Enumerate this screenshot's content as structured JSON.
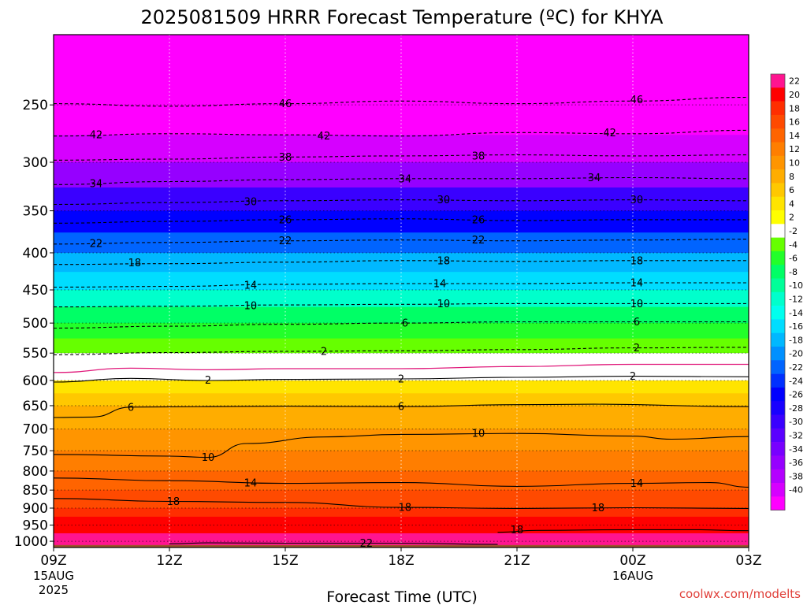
{
  "chart_data": {
    "type": "heatmap",
    "title": "2025081509 HRRR Forecast Temperature (ºC) for KHYA",
    "xlabel": "Forecast Time (UTC)",
    "credit": "coolwx.com/modelts",
    "x": {
      "range_hours": [
        0,
        18
      ],
      "ticks": [
        {
          "hour": 0,
          "label": "09Z",
          "sub1": "15AUG",
          "sub2": "2025"
        },
        {
          "hour": 3,
          "label": "12Z",
          "sub1": "",
          "sub2": ""
        },
        {
          "hour": 6,
          "label": "15Z",
          "sub1": "",
          "sub2": ""
        },
        {
          "hour": 9,
          "label": "18Z",
          "sub1": "",
          "sub2": ""
        },
        {
          "hour": 12,
          "label": "21Z",
          "sub1": "",
          "sub2": ""
        },
        {
          "hour": 15,
          "label": "00Z",
          "sub1": "16AUG",
          "sub2": ""
        },
        {
          "hour": 18,
          "label": "03Z",
          "sub1": "",
          "sub2": ""
        }
      ]
    },
    "y": {
      "scale": "log-pressure",
      "range_hpa": [
        1020,
        200
      ],
      "ticks": [
        {
          "p": 250,
          "label": "250"
        },
        {
          "p": 300,
          "label": "300"
        },
        {
          "p": 350,
          "label": "350"
        },
        {
          "p": 400,
          "label": "400"
        },
        {
          "p": 450,
          "label": "450"
        },
        {
          "p": 500,
          "label": "500"
        },
        {
          "p": 550,
          "label": "550"
        },
        {
          "p": 600,
          "label": "600"
        },
        {
          "p": 650,
          "label": "650"
        },
        {
          "p": 700,
          "label": "700"
        },
        {
          "p": 750,
          "label": "750"
        },
        {
          "p": 800,
          "label": "800"
        },
        {
          "p": 850,
          "label": "850"
        },
        {
          "p": 900,
          "label": "900"
        },
        {
          "p": 950,
          "label": "950"
        },
        {
          "p": 1000,
          "label": "1000"
        }
      ]
    },
    "profile": [
      {
        "p": 1012,
        "t": 22.6
      },
      {
        "p": 1000,
        "t": 21.4
      },
      {
        "p": 975,
        "t": 20.0
      },
      {
        "p": 950,
        "t": 18.8
      },
      {
        "p": 925,
        "t": 17.6
      },
      {
        "p": 900,
        "t": 16.4
      },
      {
        "p": 875,
        "t": 15.2
      },
      {
        "p": 850,
        "t": 14.0
      },
      {
        "p": 825,
        "t": 13.0
      },
      {
        "p": 800,
        "t": 12.0
      },
      {
        "p": 775,
        "t": 11.0
      },
      {
        "p": 750,
        "t": 10.3
      },
      {
        "p": 725,
        "t": 9.6
      },
      {
        "p": 700,
        "t": 8.6
      },
      {
        "p": 675,
        "t": 7.2
      },
      {
        "p": 650,
        "t": 5.8
      },
      {
        "p": 625,
        "t": 4.0
      },
      {
        "p": 600,
        "t": 2.2
      },
      {
        "p": 575,
        "t": 0.8
      },
      {
        "p": 550,
        "t": -2.5
      },
      {
        "p": 525,
        "t": -4.5
      },
      {
        "p": 500,
        "t": -6.5
      },
      {
        "p": 475,
        "t": -9.5
      },
      {
        "p": 450,
        "t": -13.0
      },
      {
        "p": 425,
        "t": -16.0
      },
      {
        "p": 400,
        "t": -19.5
      },
      {
        "p": 375,
        "t": -23.5
      },
      {
        "p": 350,
        "t": -27.5
      },
      {
        "p": 325,
        "t": -32.0
      },
      {
        "p": 300,
        "t": -36.5
      },
      {
        "p": 275,
        "t": -41.0
      },
      {
        "p": 250,
        "t": -45.0
      },
      {
        "p": 225,
        "t": -49.0
      },
      {
        "p": 200,
        "t": -53.0
      }
    ],
    "ground_hpa": 1012,
    "ground_color": "#a0522d",
    "contours": [
      {
        "level": 46,
        "negative": true,
        "points": [
          [
            0,
            249
          ],
          [
            3,
            251
          ],
          [
            6,
            249
          ],
          [
            9,
            247
          ],
          [
            12,
            249
          ],
          [
            15,
            247
          ],
          [
            18,
            244
          ]
        ]
      },
      {
        "level": 42,
        "negative": true,
        "points": [
          [
            0,
            276
          ],
          [
            3,
            274
          ],
          [
            6,
            275
          ],
          [
            9,
            276
          ],
          [
            12,
            273
          ],
          [
            15,
            274
          ],
          [
            18,
            271
          ]
        ]
      },
      {
        "level": 38,
        "negative": true,
        "points": [
          [
            0,
            298
          ],
          [
            3,
            297
          ],
          [
            6,
            295
          ],
          [
            9,
            294
          ],
          [
            12,
            293
          ],
          [
            15,
            294
          ],
          [
            18,
            293
          ]
        ]
      },
      {
        "level": 34,
        "negative": true,
        "points": [
          [
            0,
            322
          ],
          [
            3,
            319
          ],
          [
            6,
            317
          ],
          [
            9,
            316
          ],
          [
            12,
            316
          ],
          [
            15,
            315
          ],
          [
            18,
            316
          ]
        ]
      },
      {
        "level": 30,
        "negative": true,
        "points": [
          [
            0,
            343
          ],
          [
            3,
            341
          ],
          [
            6,
            339
          ],
          [
            9,
            338
          ],
          [
            12,
            339
          ],
          [
            15,
            338
          ],
          [
            18,
            339
          ]
        ]
      },
      {
        "level": 26,
        "negative": true,
        "points": [
          [
            0,
            364
          ],
          [
            3,
            362
          ],
          [
            6,
            360
          ],
          [
            9,
            359
          ],
          [
            12,
            361
          ],
          [
            15,
            360
          ],
          [
            18,
            360
          ]
        ]
      },
      {
        "level": 22,
        "negative": true,
        "points": [
          [
            0,
            389
          ],
          [
            3,
            387
          ],
          [
            6,
            385
          ],
          [
            9,
            384
          ],
          [
            12,
            385
          ],
          [
            15,
            384
          ],
          [
            18,
            383
          ]
        ]
      },
      {
        "level": 18,
        "negative": true,
        "points": [
          [
            0,
            415
          ],
          [
            3,
            414
          ],
          [
            6,
            412
          ],
          [
            9,
            410
          ],
          [
            12,
            411
          ],
          [
            15,
            410
          ],
          [
            18,
            410
          ]
        ]
      },
      {
        "level": 14,
        "negative": true,
        "points": [
          [
            0,
            446
          ],
          [
            3,
            445
          ],
          [
            6,
            442
          ],
          [
            9,
            441
          ],
          [
            12,
            441
          ],
          [
            15,
            440
          ],
          [
            18,
            440
          ]
        ]
      },
      {
        "level": 10,
        "negative": true,
        "points": [
          [
            0,
            475
          ],
          [
            3,
            474
          ],
          [
            6,
            472
          ],
          [
            9,
            471
          ],
          [
            12,
            470
          ],
          [
            15,
            470
          ],
          [
            18,
            470
          ]
        ]
      },
      {
        "level": 6,
        "negative": true,
        "points": [
          [
            0,
            508
          ],
          [
            3,
            505
          ],
          [
            6,
            502
          ],
          [
            9,
            500
          ],
          [
            12,
            498
          ],
          [
            15,
            498
          ],
          [
            18,
            498
          ]
        ]
      },
      {
        "level": 2,
        "negative": true,
        "points": [
          [
            0,
            553
          ],
          [
            3,
            549
          ],
          [
            6,
            547
          ],
          [
            9,
            546
          ],
          [
            12,
            544
          ],
          [
            15,
            541
          ],
          [
            18,
            540
          ]
        ]
      },
      {
        "level": 2,
        "negative": false,
        "points": [
          [
            0,
            603
          ],
          [
            2,
            596
          ],
          [
            4,
            600
          ],
          [
            6,
            598
          ],
          [
            9,
            597
          ],
          [
            12,
            594
          ],
          [
            15,
            592
          ],
          [
            18,
            593
          ]
        ]
      },
      {
        "level": 6,
        "negative": false,
        "points": [
          [
            0,
            675
          ],
          [
            1,
            674
          ],
          [
            2,
            653
          ],
          [
            6,
            651
          ],
          [
            9,
            652
          ],
          [
            12,
            648
          ],
          [
            14,
            647
          ],
          [
            18,
            652
          ]
        ]
      },
      {
        "level": 10,
        "negative": false,
        "points": [
          [
            0,
            759
          ],
          [
            3,
            763
          ],
          [
            4,
            766
          ],
          [
            5,
            733
          ],
          [
            7,
            718
          ],
          [
            9,
            712
          ],
          [
            12,
            710
          ],
          [
            15,
            716
          ],
          [
            16,
            723
          ],
          [
            18,
            717
          ]
        ]
      },
      {
        "level": 14,
        "negative": false,
        "points": [
          [
            0,
            818
          ],
          [
            3,
            825
          ],
          [
            6,
            832
          ],
          [
            9,
            830
          ],
          [
            12,
            840
          ],
          [
            15,
            832
          ],
          [
            17,
            830
          ],
          [
            18,
            842
          ]
        ]
      },
      {
        "level": 18,
        "negative": false,
        "points": [
          [
            0,
            873
          ],
          [
            3,
            881
          ],
          [
            6,
            884
          ],
          [
            9,
            898
          ],
          [
            12,
            901
          ],
          [
            15,
            899
          ],
          [
            18,
            901
          ]
        ]
      },
      {
        "level": 18,
        "negative": false,
        "points": [
          [
            11.5,
            972
          ],
          [
            12.5,
            966
          ],
          [
            15,
            964
          ],
          [
            16.5,
            964
          ],
          [
            18,
            967
          ]
        ]
      },
      {
        "level": 22,
        "negative": false,
        "points": [
          [
            3,
            1008
          ],
          [
            4,
            1005
          ],
          [
            6,
            1006
          ],
          [
            9,
            1006
          ],
          [
            11.5,
            1010
          ]
        ]
      }
    ],
    "magenta_line": {
      "level": 0,
      "points": [
        [
          0,
          585
        ],
        [
          2,
          577
        ],
        [
          4,
          580
        ],
        [
          6,
          578
        ],
        [
          9,
          578
        ],
        [
          12,
          574
        ],
        [
          15,
          570
        ],
        [
          18,
          570
        ]
      ]
    },
    "contour_labels": [
      {
        "text": "46",
        "h": 6.0,
        "p": 249
      },
      {
        "text": "46",
        "h": 15.1,
        "p": 246
      },
      {
        "text": "42",
        "h": 1.1,
        "p": 275
      },
      {
        "text": "42",
        "h": 7.0,
        "p": 276
      },
      {
        "text": "42",
        "h": 14.4,
        "p": 273
      },
      {
        "text": "38",
        "h": 6.0,
        "p": 295
      },
      {
        "text": "38",
        "h": 11.0,
        "p": 294
      },
      {
        "text": "34",
        "h": 1.1,
        "p": 321
      },
      {
        "text": "34",
        "h": 9.1,
        "p": 316
      },
      {
        "text": "34",
        "h": 14.0,
        "p": 315
      },
      {
        "text": "30",
        "h": 5.1,
        "p": 340
      },
      {
        "text": "30",
        "h": 10.1,
        "p": 338
      },
      {
        "text": "30",
        "h": 15.1,
        "p": 338
      },
      {
        "text": "26",
        "h": 6.0,
        "p": 360
      },
      {
        "text": "26",
        "h": 11.0,
        "p": 360
      },
      {
        "text": "22",
        "h": 1.1,
        "p": 388
      },
      {
        "text": "22",
        "h": 6.0,
        "p": 385
      },
      {
        "text": "22",
        "h": 11.0,
        "p": 384
      },
      {
        "text": "18",
        "h": 2.1,
        "p": 413
      },
      {
        "text": "18",
        "h": 10.1,
        "p": 410
      },
      {
        "text": "18",
        "h": 15.1,
        "p": 410
      },
      {
        "text": "14",
        "h": 5.1,
        "p": 443
      },
      {
        "text": "14",
        "h": 10.0,
        "p": 441
      },
      {
        "text": "14",
        "h": 15.1,
        "p": 440
      },
      {
        "text": "10",
        "h": 5.1,
        "p": 473
      },
      {
        "text": "10",
        "h": 10.1,
        "p": 470
      },
      {
        "text": "10",
        "h": 15.1,
        "p": 470
      },
      {
        "text": "6",
        "h": 9.1,
        "p": 500
      },
      {
        "text": "6",
        "h": 15.1,
        "p": 498
      },
      {
        "text": "2",
        "h": 7.0,
        "p": 547
      },
      {
        "text": "2",
        "h": 15.1,
        "p": 541
      },
      {
        "text": "2",
        "h": 4.0,
        "p": 599
      },
      {
        "text": "2",
        "h": 9.0,
        "p": 597
      },
      {
        "text": "2",
        "h": 15.0,
        "p": 592
      },
      {
        "text": "6",
        "h": 2.0,
        "p": 653
      },
      {
        "text": "6",
        "h": 9.0,
        "p": 652
      },
      {
        "text": "10",
        "h": 4.0,
        "p": 766
      },
      {
        "text": "10",
        "h": 11.0,
        "p": 710
      },
      {
        "text": "14",
        "h": 5.1,
        "p": 831
      },
      {
        "text": "14",
        "h": 15.1,
        "p": 832
      },
      {
        "text": "18",
        "h": 3.1,
        "p": 881
      },
      {
        "text": "18",
        "h": 9.1,
        "p": 898
      },
      {
        "text": "18",
        "h": 14.1,
        "p": 899
      },
      {
        "text": "18",
        "h": 12.0,
        "p": 964
      },
      {
        "text": "22",
        "h": 8.1,
        "p": 1006
      }
    ],
    "colorbar": {
      "bins": [
        {
          "label": "22",
          "color": "#ff1490"
        },
        {
          "label": "20",
          "color": "#ff0000"
        },
        {
          "label": "18",
          "color": "#ff2e00"
        },
        {
          "label": "16",
          "color": "#ff4a00"
        },
        {
          "label": "14",
          "color": "#ff6400"
        },
        {
          "label": "12",
          "color": "#ff7e00"
        },
        {
          "label": "10",
          "color": "#ff9500"
        },
        {
          "label": "8",
          "color": "#ffad00"
        },
        {
          "label": "6",
          "color": "#ffc800"
        },
        {
          "label": "4",
          "color": "#ffe400"
        },
        {
          "label": "2",
          "color": "#ffff00"
        },
        {
          "label": "-2",
          "color": "#ffffff"
        },
        {
          "label": "-4",
          "color": "#66ff00"
        },
        {
          "label": "-6",
          "color": "#22ff2a"
        },
        {
          "label": "-8",
          "color": "#00ff66"
        },
        {
          "label": "-10",
          "color": "#00ff99"
        },
        {
          "label": "-12",
          "color": "#00ffcc"
        },
        {
          "label": "-14",
          "color": "#00ffee"
        },
        {
          "label": "-16",
          "color": "#00ddff"
        },
        {
          "label": "-18",
          "color": "#00b8ff"
        },
        {
          "label": "-20",
          "color": "#0090ff"
        },
        {
          "label": "-22",
          "color": "#0064ff"
        },
        {
          "label": "-24",
          "color": "#0030ff"
        },
        {
          "label": "-26",
          "color": "#0000ff"
        },
        {
          "label": "-28",
          "color": "#1800ff"
        },
        {
          "label": "-30",
          "color": "#3a00ff"
        },
        {
          "label": "-32",
          "color": "#5a00ff"
        },
        {
          "label": "-34",
          "color": "#7800ff"
        },
        {
          "label": "-36",
          "color": "#9600ff"
        },
        {
          "label": "-38",
          "color": "#b400ff"
        },
        {
          "label": "-40",
          "color": "#d600ff"
        },
        {
          "label": "",
          "color": "#ff00ff"
        }
      ]
    }
  }
}
